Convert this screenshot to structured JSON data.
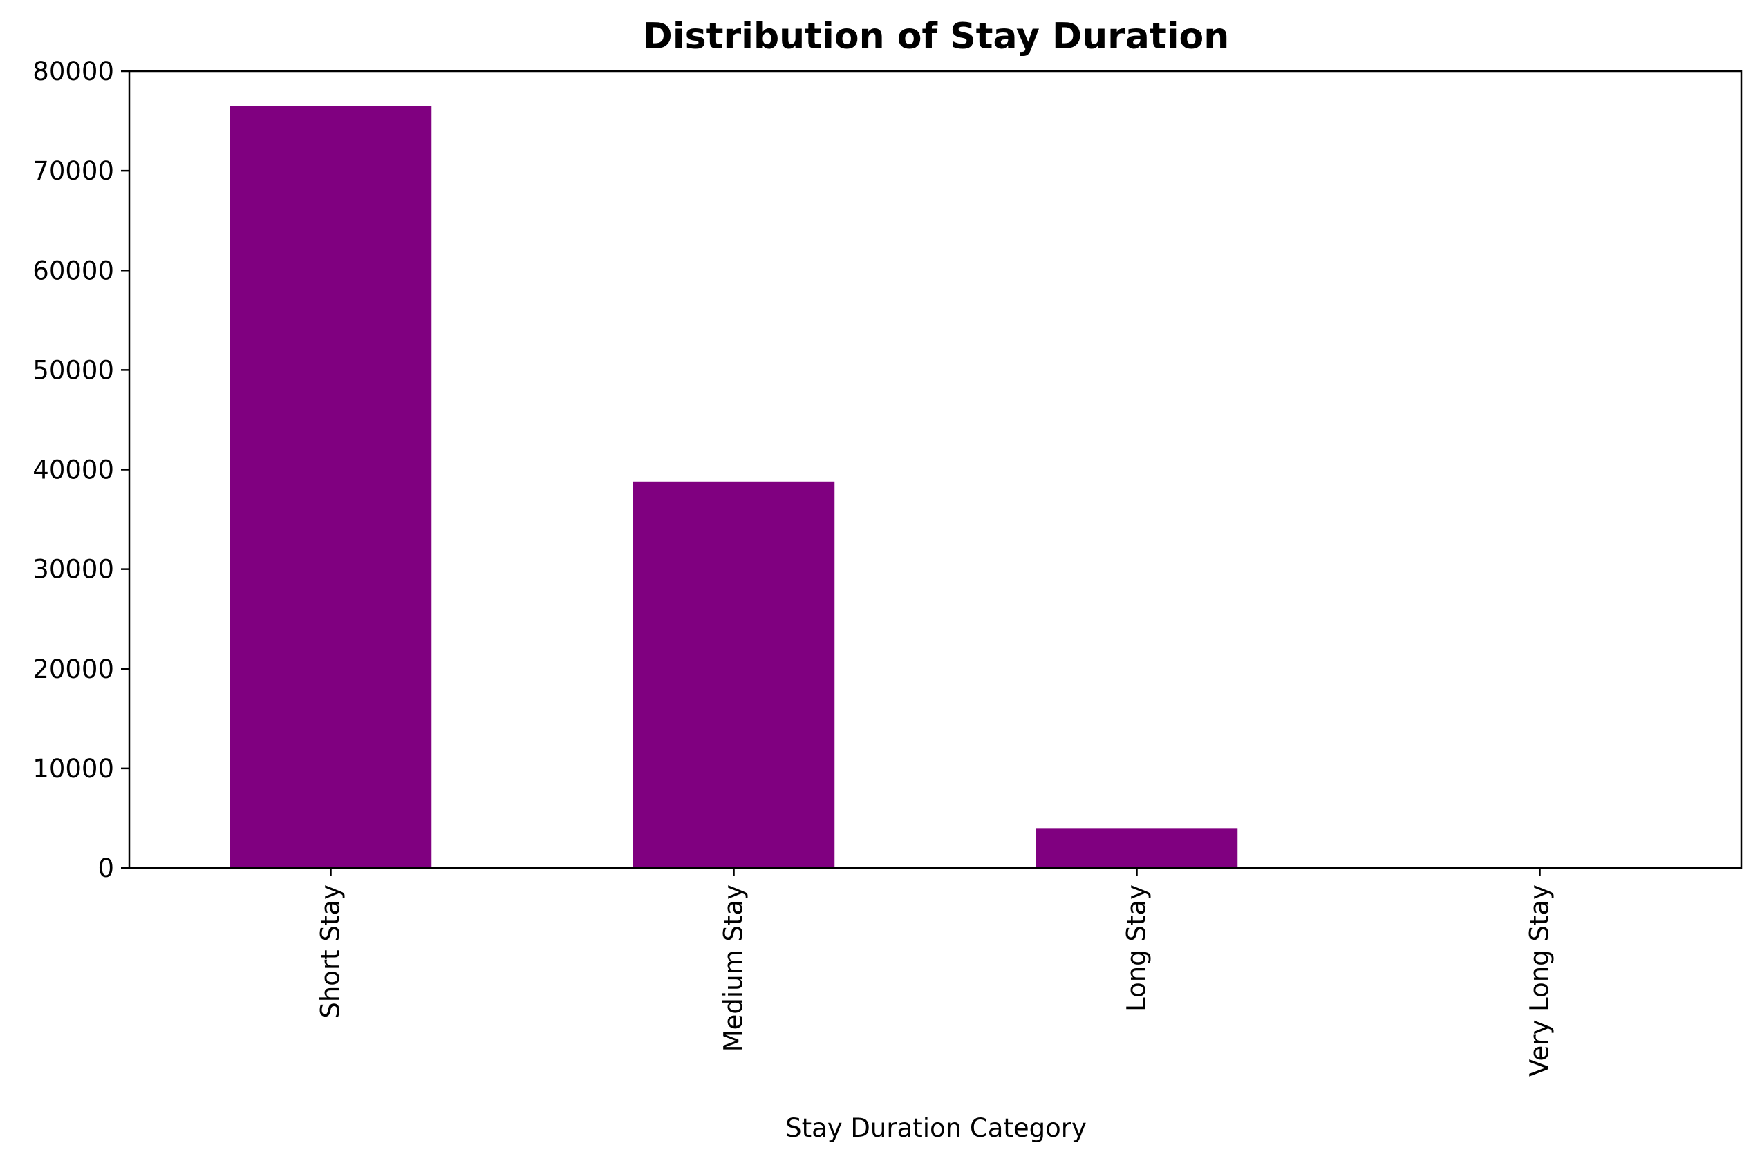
{
  "chart_data": {
    "type": "bar",
    "title": "Distribution of Stay Duration",
    "xlabel": "Stay Duration Category",
    "ylabel": "",
    "categories": [
      "Short Stay",
      "Medium Stay",
      "Long Stay",
      "Very Long Stay"
    ],
    "values": [
      76500,
      38800,
      4000,
      0
    ],
    "ylim": [
      0,
      80000
    ],
    "yticks": [
      0,
      10000,
      20000,
      30000,
      40000,
      50000,
      60000,
      70000,
      80000
    ],
    "ytick_labels": [
      "0",
      "10000",
      "20000",
      "30000",
      "40000",
      "50000",
      "60000",
      "70000",
      "80000"
    ],
    "bar_color": "#800080",
    "grid": false,
    "legend": "none"
  }
}
